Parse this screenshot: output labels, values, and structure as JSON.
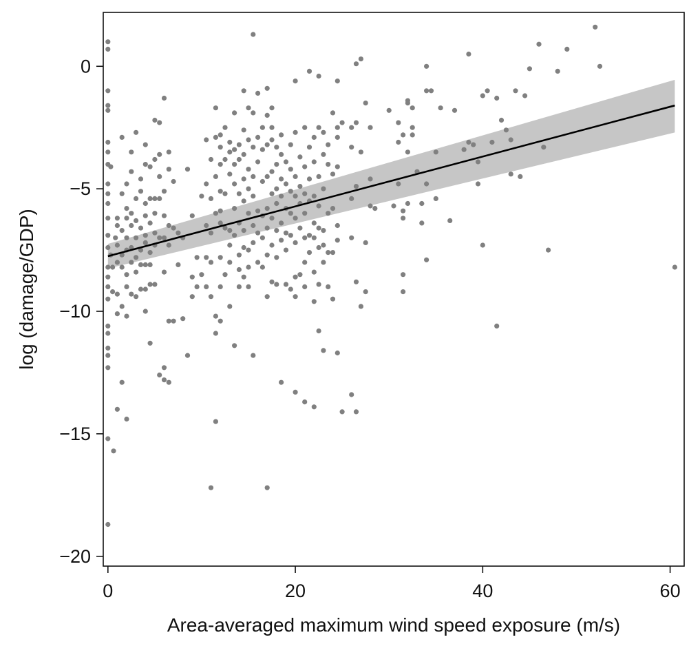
{
  "chart_data": {
    "type": "scatter",
    "title": "",
    "xlabel": "Area-averaged maximum wind speed exposure (m/s)",
    "ylabel": "log (damage/GDP)",
    "xlim": [
      -0.5,
      61.5
    ],
    "ylim": [
      -20.4,
      2.2
    ],
    "xticks": [
      0,
      20,
      40,
      60
    ],
    "xtick_labels": [
      "0",
      "20",
      "40",
      "60"
    ],
    "yticks": [
      0,
      -5,
      -10,
      -15,
      -20
    ],
    "ytick_labels": [
      "0",
      "−5",
      "−10",
      "−15",
      "−20"
    ],
    "grid": false,
    "colors": {
      "points": "#808080",
      "fit_line": "#000000",
      "ci_band": "#c6c6c6"
    },
    "fit": {
      "type": "linear",
      "x": [
        0,
        60.5
      ],
      "y": [
        -7.75,
        -1.6
      ],
      "ci_lower": [
        -8.25,
        -2.7
      ],
      "ci_upper": [
        -7.25,
        -0.55
      ]
    },
    "points": [
      [
        0,
        1.0
      ],
      [
        0,
        0.7
      ],
      [
        0,
        -1.0
      ],
      [
        0,
        -1.6
      ],
      [
        0,
        -1.8
      ],
      [
        0,
        -3.1
      ],
      [
        0,
        -3.5
      ],
      [
        0,
        -4.0
      ],
      [
        0,
        -4.8
      ],
      [
        0,
        -5.2
      ],
      [
        0,
        -5.6
      ],
      [
        0,
        -6.2
      ],
      [
        0,
        -6.9
      ],
      [
        0,
        -7.4
      ],
      [
        0,
        -8.2
      ],
      [
        0,
        -8.6
      ],
      [
        0,
        -9.0
      ],
      [
        0,
        -9.5
      ],
      [
        0,
        -10.6
      ],
      [
        0,
        -10.9
      ],
      [
        0,
        -11.5
      ],
      [
        0,
        -11.8
      ],
      [
        0,
        -12.3
      ],
      [
        0,
        -15.2
      ],
      [
        0,
        -18.7
      ],
      [
        0.3,
        -4.1
      ],
      [
        0.3,
        -7.7
      ],
      [
        0.5,
        -8.2
      ],
      [
        0.5,
        -9.2
      ],
      [
        0.6,
        -15.7
      ],
      [
        0.8,
        -7.0
      ],
      [
        1.0,
        -6.2
      ],
      [
        1.0,
        -6.5
      ],
      [
        1.0,
        -7.3
      ],
      [
        1.0,
        -8.0
      ],
      [
        1.0,
        -9.3
      ],
      [
        1.0,
        -10.1
      ],
      [
        1.0,
        -14.0
      ],
      [
        1.5,
        -2.9
      ],
      [
        1.5,
        -5.2
      ],
      [
        1.5,
        -6.7
      ],
      [
        1.5,
        -7.7
      ],
      [
        1.5,
        -8.2
      ],
      [
        1.5,
        -9.8
      ],
      [
        1.5,
        -12.9
      ],
      [
        2.0,
        -4.8
      ],
      [
        2.0,
        -5.8
      ],
      [
        2.0,
        -6.2
      ],
      [
        2.0,
        -7.0
      ],
      [
        2.0,
        -7.5
      ],
      [
        2.0,
        -8.5
      ],
      [
        2.0,
        -9.0
      ],
      [
        2.0,
        -10.2
      ],
      [
        2.0,
        -14.4
      ],
      [
        2.5,
        -3.5
      ],
      [
        2.5,
        -4.3
      ],
      [
        2.5,
        -6.0
      ],
      [
        2.5,
        -6.5
      ],
      [
        2.5,
        -7.4
      ],
      [
        2.5,
        -8.0
      ],
      [
        2.5,
        -9.3
      ],
      [
        3.0,
        -2.7
      ],
      [
        3.0,
        -5.4
      ],
      [
        3.0,
        -6.3
      ],
      [
        3.0,
        -7.0
      ],
      [
        3.0,
        -7.8
      ],
      [
        3.0,
        -8.4
      ],
      [
        3.0,
        -9.4
      ],
      [
        3.5,
        -4.6
      ],
      [
        3.5,
        -5.1
      ],
      [
        3.5,
        -6.6
      ],
      [
        3.5,
        -7.5
      ],
      [
        3.5,
        -8.1
      ],
      [
        3.5,
        -9.1
      ],
      [
        4.0,
        -3.2
      ],
      [
        4.0,
        -4.0
      ],
      [
        4.0,
        -5.6
      ],
      [
        4.0,
        -6.1
      ],
      [
        4.0,
        -6.9
      ],
      [
        4.0,
        -7.2
      ],
      [
        4.0,
        -8.1
      ],
      [
        4.0,
        -9.1
      ],
      [
        4.0,
        -10.0
      ],
      [
        4.5,
        -4.1
      ],
      [
        4.5,
        -5.4
      ],
      [
        4.5,
        -6.4
      ],
      [
        4.5,
        -7.6
      ],
      [
        4.5,
        -8.1
      ],
      [
        4.5,
        -8.9
      ],
      [
        4.5,
        -11.3
      ],
      [
        5.0,
        -2.2
      ],
      [
        5.0,
        -3.8
      ],
      [
        5.0,
        -5.4
      ],
      [
        5.0,
        -6.0
      ],
      [
        5.0,
        -6.8
      ],
      [
        5.0,
        -7.3
      ],
      [
        5.0,
        -8.9
      ],
      [
        5.5,
        -2.3
      ],
      [
        5.5,
        -3.6
      ],
      [
        5.5,
        -4.5
      ],
      [
        5.5,
        -5.4
      ],
      [
        5.5,
        -7.0
      ],
      [
        5.5,
        -12.6
      ],
      [
        6.0,
        -1.3
      ],
      [
        6.0,
        -5.1
      ],
      [
        6.0,
        -6.1
      ],
      [
        6.0,
        -7.0
      ],
      [
        6.0,
        -8.4
      ],
      [
        6.0,
        -12.3
      ],
      [
        6.0,
        -12.8
      ],
      [
        6.5,
        -3.5
      ],
      [
        6.5,
        -4.2
      ],
      [
        6.5,
        -6.5
      ],
      [
        6.5,
        -7.3
      ],
      [
        6.5,
        -10.4
      ],
      [
        6.5,
        -12.9
      ],
      [
        7.0,
        -4.7
      ],
      [
        7.0,
        -6.6
      ],
      [
        7.0,
        -10.4
      ],
      [
        7.5,
        -6.8
      ],
      [
        7.5,
        -8.1
      ],
      [
        8.0,
        -7.0
      ],
      [
        8.0,
        -10.3
      ],
      [
        8.5,
        -4.2
      ],
      [
        8.5,
        -11.8
      ],
      [
        9.0,
        -6.1
      ],
      [
        9.0,
        -8.6
      ],
      [
        9.0,
        -9.4
      ],
      [
        9.5,
        -7.8
      ],
      [
        9.5,
        -9.0
      ],
      [
        10.0,
        -8.5
      ],
      [
        10.0,
        -5.3
      ],
      [
        10.5,
        -3.0
      ],
      [
        10.5,
        -4.8
      ],
      [
        10.5,
        -6.5
      ],
      [
        10.5,
        -7.8
      ],
      [
        10.5,
        -9.0
      ],
      [
        11.0,
        -17.2
      ],
      [
        11.0,
        -3.8
      ],
      [
        11.0,
        -5.4
      ],
      [
        11.0,
        -6.8
      ],
      [
        11.0,
        -8.0
      ],
      [
        11.0,
        -9.4
      ],
      [
        11.5,
        -1.7
      ],
      [
        11.5,
        -2.9
      ],
      [
        11.5,
        -4.5
      ],
      [
        11.5,
        -6.0
      ],
      [
        11.5,
        -10.2
      ],
      [
        11.5,
        -10.9
      ],
      [
        11.5,
        -14.5
      ],
      [
        12.0,
        -2.8
      ],
      [
        12.0,
        -3.3
      ],
      [
        12.0,
        -4.0
      ],
      [
        12.0,
        -5.1
      ],
      [
        12.0,
        -5.9
      ],
      [
        12.0,
        -6.4
      ],
      [
        12.0,
        -7.8
      ],
      [
        12.0,
        -9.0
      ],
      [
        12.0,
        -10.4
      ],
      [
        12.5,
        -2.5
      ],
      [
        12.5,
        -3.8
      ],
      [
        12.5,
        -5.2
      ],
      [
        12.5,
        -6.6
      ],
      [
        12.5,
        -8.5
      ],
      [
        13.0,
        -3.1
      ],
      [
        13.0,
        -3.5
      ],
      [
        13.0,
        -4.4
      ],
      [
        13.0,
        -6.7
      ],
      [
        13.0,
        -7.3
      ],
      [
        13.0,
        -8.0
      ],
      [
        13.0,
        -9.8
      ],
      [
        13.5,
        -1.9
      ],
      [
        13.5,
        -3.4
      ],
      [
        13.5,
        -4.0
      ],
      [
        13.5,
        -4.8
      ],
      [
        13.5,
        -5.8
      ],
      [
        13.5,
        -6.9
      ],
      [
        13.5,
        -11.4
      ],
      [
        14.0,
        -3.2
      ],
      [
        14.0,
        -3.8
      ],
      [
        14.0,
        -5.2
      ],
      [
        14.0,
        -6.4
      ],
      [
        14.0,
        -7.7
      ],
      [
        14.0,
        -8.3
      ],
      [
        14.0,
        -9.0
      ],
      [
        14.5,
        -1.0
      ],
      [
        14.5,
        -2.6
      ],
      [
        14.5,
        -3.6
      ],
      [
        14.5,
        -4.6
      ],
      [
        14.5,
        -5.5
      ],
      [
        14.5,
        -6.7
      ],
      [
        14.5,
        -7.4
      ],
      [
        14.5,
        -8.6
      ],
      [
        15.0,
        -1.7
      ],
      [
        15.0,
        -3.0
      ],
      [
        15.0,
        -4.2
      ],
      [
        15.0,
        -5.0
      ],
      [
        15.0,
        -6.0
      ],
      [
        15.0,
        -7.5
      ],
      [
        15.0,
        -8.2
      ],
      [
        15.0,
        -9.0
      ],
      [
        15.5,
        1.3
      ],
      [
        15.5,
        -1.9
      ],
      [
        15.5,
        -3.3
      ],
      [
        15.5,
        -4.5
      ],
      [
        15.5,
        -5.3
      ],
      [
        15.5,
        -6.5
      ],
      [
        15.5,
        -7.2
      ],
      [
        15.5,
        -11.8
      ],
      [
        16.0,
        -1.1
      ],
      [
        16.0,
        -2.9
      ],
      [
        16.0,
        -3.9
      ],
      [
        16.0,
        -5.9
      ],
      [
        16.0,
        -6.8
      ],
      [
        16.0,
        -8.0
      ],
      [
        16.5,
        -2.5
      ],
      [
        16.5,
        -3.4
      ],
      [
        16.5,
        -4.7
      ],
      [
        16.5,
        -6.1
      ],
      [
        16.5,
        -7.0
      ],
      [
        16.5,
        -8.2
      ],
      [
        17.0,
        -17.2
      ],
      [
        17.0,
        -0.9
      ],
      [
        17.0,
        -2.0
      ],
      [
        17.0,
        -3.2
      ],
      [
        17.0,
        -4.5
      ],
      [
        17.0,
        -5.8
      ],
      [
        17.0,
        -6.6
      ],
      [
        17.0,
        -7.7
      ],
      [
        17.0,
        -9.4
      ],
      [
        17.5,
        -1.7
      ],
      [
        17.5,
        -2.5
      ],
      [
        17.5,
        -3.0
      ],
      [
        17.5,
        -4.3
      ],
      [
        17.5,
        -5.2
      ],
      [
        17.5,
        -6.2
      ],
      [
        17.5,
        -7.3
      ],
      [
        17.5,
        -8.8
      ],
      [
        18.0,
        -3.3
      ],
      [
        18.0,
        -4.0
      ],
      [
        18.0,
        -5.0
      ],
      [
        18.0,
        -5.6
      ],
      [
        18.0,
        -6.7
      ],
      [
        18.0,
        -7.8
      ],
      [
        18.0,
        -8.9
      ],
      [
        18.5,
        -2.8
      ],
      [
        18.5,
        -3.6
      ],
      [
        18.5,
        -4.6
      ],
      [
        18.5,
        -5.3
      ],
      [
        18.5,
        -6.4
      ],
      [
        18.5,
        -7.1
      ],
      [
        18.5,
        -12.9
      ],
      [
        19.0,
        -3.9
      ],
      [
        19.0,
        -4.8
      ],
      [
        19.0,
        -5.8
      ],
      [
        19.0,
        -6.8
      ],
      [
        19.0,
        -7.5
      ],
      [
        19.0,
        -8.9
      ],
      [
        19.5,
        -3.2
      ],
      [
        19.5,
        -4.2
      ],
      [
        19.5,
        -5.1
      ],
      [
        19.5,
        -6.0
      ],
      [
        19.5,
        -6.9
      ],
      [
        19.5,
        -9.1
      ],
      [
        20.0,
        -0.6
      ],
      [
        20.0,
        -2.7
      ],
      [
        20.0,
        -4.5
      ],
      [
        20.0,
        -5.3
      ],
      [
        20.0,
        -6.2
      ],
      [
        20.0,
        -7.2
      ],
      [
        20.0,
        -8.6
      ],
      [
        20.0,
        -9.4
      ],
      [
        20.0,
        -13.3
      ],
      [
        20.5,
        -3.7
      ],
      [
        20.5,
        -4.9
      ],
      [
        20.5,
        -5.6
      ],
      [
        20.5,
        -6.6
      ],
      [
        20.5,
        -8.5
      ],
      [
        21.0,
        -2.5
      ],
      [
        21.0,
        -4.1
      ],
      [
        21.0,
        -5.2
      ],
      [
        21.0,
        -6.0
      ],
      [
        21.0,
        -7.0
      ],
      [
        21.0,
        -8.0
      ],
      [
        21.0,
        -9.0
      ],
      [
        21.0,
        -13.7
      ],
      [
        21.5,
        -0.2
      ],
      [
        21.5,
        -3.3
      ],
      [
        21.5,
        -4.6
      ],
      [
        21.5,
        -5.5
      ],
      [
        21.5,
        -6.9
      ],
      [
        21.5,
        -7.6
      ],
      [
        22.0,
        -2.9
      ],
      [
        22.0,
        -3.9
      ],
      [
        22.0,
        -5.3
      ],
      [
        22.0,
        -6.4
      ],
      [
        22.0,
        -7.0
      ],
      [
        22.0,
        -8.4
      ],
      [
        22.0,
        -9.6
      ],
      [
        22.0,
        -13.9
      ],
      [
        22.5,
        -0.4
      ],
      [
        22.5,
        -2.5
      ],
      [
        22.5,
        -4.5
      ],
      [
        22.5,
        -5.7
      ],
      [
        22.5,
        -6.6
      ],
      [
        22.5,
        -7.4
      ],
      [
        22.5,
        -8.9
      ],
      [
        22.5,
        -10.8
      ],
      [
        23.0,
        -2.7
      ],
      [
        23.0,
        -3.6
      ],
      [
        23.0,
        -5.0
      ],
      [
        23.0,
        -6.7
      ],
      [
        23.0,
        -7.3
      ],
      [
        23.0,
        -8.0
      ],
      [
        23.0,
        -11.6
      ],
      [
        23.5,
        -3.2
      ],
      [
        23.5,
        -4.0
      ],
      [
        23.5,
        -6.0
      ],
      [
        23.5,
        -7.6
      ],
      [
        23.5,
        -9.0
      ],
      [
        24.0,
        -1.9
      ],
      [
        24.0,
        -4.4
      ],
      [
        24.0,
        -5.8
      ],
      [
        24.0,
        -7.6
      ],
      [
        24.0,
        -9.5
      ],
      [
        24.5,
        -0.6
      ],
      [
        24.5,
        -2.5
      ],
      [
        24.5,
        -2.9
      ],
      [
        24.5,
        -4.1
      ],
      [
        24.5,
        -6.5
      ],
      [
        24.5,
        -7.1
      ],
      [
        24.5,
        -11.7
      ],
      [
        25.0,
        -2.3
      ],
      [
        25.0,
        -14.1
      ],
      [
        26.0,
        -2.5
      ],
      [
        26.0,
        -3.3
      ],
      [
        26.0,
        -5.4
      ],
      [
        26.0,
        -13.4
      ],
      [
        26.0,
        -7.0
      ],
      [
        26.5,
        0.1
      ],
      [
        26.5,
        -2.3
      ],
      [
        26.5,
        -4.9
      ],
      [
        26.5,
        -8.8
      ],
      [
        26.5,
        -14.1
      ],
      [
        27.0,
        0.3
      ],
      [
        27.0,
        -3.5
      ],
      [
        27.0,
        -9.8
      ],
      [
        27.5,
        -1.5
      ],
      [
        27.5,
        -7.2
      ],
      [
        27.5,
        -9.2
      ],
      [
        28.0,
        -2.5
      ],
      [
        28.0,
        -4.6
      ],
      [
        28.0,
        -5.7
      ],
      [
        28.5,
        -5.8
      ],
      [
        30.0,
        -1.8
      ],
      [
        30.5,
        -5.7
      ],
      [
        31.0,
        -2.3
      ],
      [
        31.0,
        -4.8
      ],
      [
        31.0,
        -3.1
      ],
      [
        31.5,
        -2.8
      ],
      [
        31.5,
        -5.9
      ],
      [
        31.5,
        -6.2
      ],
      [
        31.5,
        -8.5
      ],
      [
        31.5,
        -9.2
      ],
      [
        32.0,
        -1.4
      ],
      [
        32.0,
        -1.5
      ],
      [
        32.0,
        -3.5
      ],
      [
        32.0,
        -5.6
      ],
      [
        32.5,
        -1.7
      ],
      [
        32.5,
        -2.5
      ],
      [
        32.5,
        -2.8
      ],
      [
        33.0,
        -4.3
      ],
      [
        33.5,
        -6.4
      ],
      [
        33.5,
        -5.6
      ],
      [
        34.0,
        0.0
      ],
      [
        34.0,
        -1.0
      ],
      [
        34.0,
        -4.8
      ],
      [
        34.0,
        -7.9
      ],
      [
        34.5,
        -1.0
      ],
      [
        35.0,
        -3.5
      ],
      [
        35.0,
        -5.4
      ],
      [
        35.5,
        -1.7
      ],
      [
        36.5,
        -6.3
      ],
      [
        37.0,
        -1.8
      ],
      [
        38.0,
        -3.4
      ],
      [
        38.5,
        0.5
      ],
      [
        38.5,
        -3.1
      ],
      [
        39.0,
        -3.2
      ],
      [
        39.5,
        -3.9
      ],
      [
        39.5,
        -4.8
      ],
      [
        40.0,
        -1.2
      ],
      [
        40.0,
        -7.3
      ],
      [
        40.5,
        -1.0
      ],
      [
        41.0,
        -3.1
      ],
      [
        41.5,
        -1.3
      ],
      [
        41.5,
        -10.6
      ],
      [
        42.0,
        -2.2
      ],
      [
        42.5,
        -2.6
      ],
      [
        43.0,
        -3.0
      ],
      [
        43.0,
        -4.4
      ],
      [
        43.5,
        -1.0
      ],
      [
        44.0,
        -4.5
      ],
      [
        44.5,
        -1.2
      ],
      [
        45.0,
        -0.1
      ],
      [
        46.0,
        0.9
      ],
      [
        46.5,
        -3.3
      ],
      [
        47.0,
        -7.5
      ],
      [
        48.0,
        -0.2
      ],
      [
        49.0,
        0.7
      ],
      [
        52.0,
        1.6
      ],
      [
        52.5,
        0.0
      ],
      [
        60.5,
        -8.2
      ]
    ]
  }
}
